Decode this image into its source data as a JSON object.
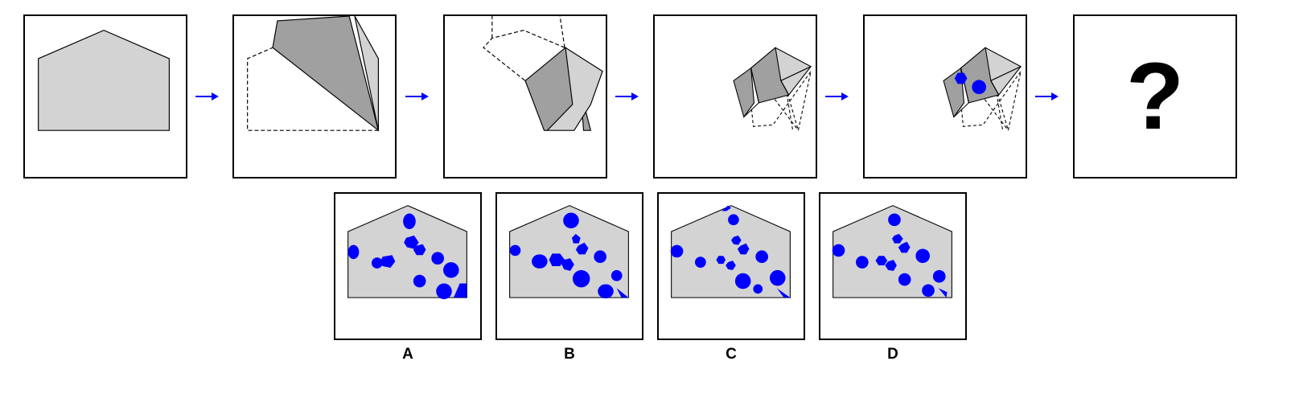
{
  "question_mark": "?",
  "options": [
    {
      "label": "A"
    },
    {
      "label": "B"
    },
    {
      "label": "C"
    },
    {
      "label": "D"
    }
  ],
  "colors": {
    "paper_fill": "#d3d3d3",
    "fold_fill": "#a0a0a0",
    "hole_fill": "#0000ff",
    "arrow": "#0000ff",
    "outline": "#000000"
  }
}
